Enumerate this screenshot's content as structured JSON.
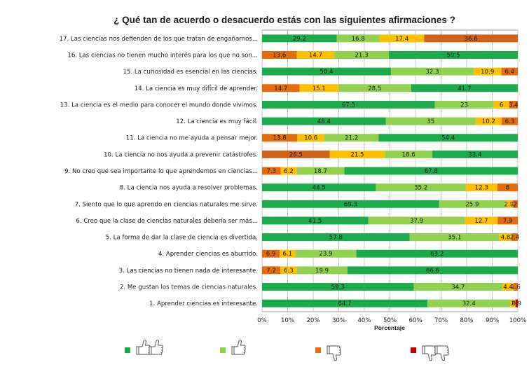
{
  "chart_data": {
    "type": "bar",
    "orientation": "horizontal",
    "stacked": "percent",
    "title": "¿ Qué tan de acuerdo o desacuerdo estás con las siguientes afirmaciones ?",
    "xlabel": "Porcentaje",
    "ylabel": "",
    "xlim": [
      0,
      100
    ],
    "x_ticks": [
      "0%",
      "10%",
      "20%",
      "30%",
      "40%",
      "50%",
      "60%",
      "70%",
      "80%",
      "90%",
      "100%"
    ],
    "grid": true,
    "legend_position": "bottom",
    "categories": [
      "17. Las ciencias nos defienden de los que tratan de engañarnos...",
      "16. Las ciencias no tienen mucho interés para los que no son...",
      "15. La curiosidad es esencial en las ciencias.",
      "14. La ciencia es muy difícil de aprender.",
      "13. La ciencia es el medio para conocer el mundo donde vivimos.",
      "12. La ciencia es muy fácil.",
      "11. La ciencia no me ayuda a pensar mejor.",
      "10. La ciencia no nos ayuda a prevenir catástrofes.",
      "9. No creo que sea importante lo que aprendemos en ciencias...",
      "8. La ciencia nos ayuda a resolver problemas.",
      "7. Siento que lo que aprendo en ciencias naturales me sirve.",
      "6. Creo que la clase de ciencias naturales debería ser más...",
      "5. La forma de dar la clase de ciencia es divertida.",
      "4. Aprender ciencias es aburrido.",
      "3. Las ciencias no tienen nada de interesante.",
      "2. Me gustan los temas de ciencias naturales.",
      "1. Aprender ciencias es interesante."
    ],
    "segment_palette": {
      "dark_green": "#1cab4b",
      "light_green": "#92d050",
      "yellow": "#ffc000",
      "orange": "#e46c0a",
      "dark_orange": "#d0621b",
      "red": "#c00000"
    },
    "rows": [
      {
        "segments": [
          {
            "value": 29.2,
            "color": "dark_green"
          },
          {
            "value": 16.8,
            "color": "light_green"
          },
          {
            "value": 17.4,
            "color": "yellow"
          },
          {
            "value": 36.6,
            "color": "dark_orange"
          }
        ]
      },
      {
        "segments": [
          {
            "value": 13.6,
            "color": "orange"
          },
          {
            "value": 14.7,
            "color": "yellow"
          },
          {
            "value": 21.3,
            "color": "light_green"
          },
          {
            "value": 50.5,
            "color": "dark_green"
          }
        ]
      },
      {
        "segments": [
          {
            "value": 50.4,
            "color": "dark_green"
          },
          {
            "value": 32.3,
            "color": "light_green"
          },
          {
            "value": 10.9,
            "color": "yellow"
          },
          {
            "value": 6.4,
            "color": "orange"
          }
        ]
      },
      {
        "segments": [
          {
            "value": 14.7,
            "color": "orange"
          },
          {
            "value": 15.1,
            "color": "yellow"
          },
          {
            "value": 28.5,
            "color": "light_green"
          },
          {
            "value": 41.7,
            "color": "dark_green"
          }
        ]
      },
      {
        "segments": [
          {
            "value": 67.5,
            "color": "dark_green"
          },
          {
            "value": 23,
            "color": "light_green"
          },
          {
            "value": 6,
            "color": "yellow"
          },
          {
            "value": 3.4,
            "color": "orange"
          }
        ]
      },
      {
        "segments": [
          {
            "value": 48.4,
            "color": "dark_green"
          },
          {
            "value": 35,
            "color": "light_green"
          },
          {
            "value": 10.2,
            "color": "yellow"
          },
          {
            "value": 6.3,
            "color": "orange"
          }
        ]
      },
      {
        "segments": [
          {
            "value": 13.8,
            "color": "orange"
          },
          {
            "value": 10.6,
            "color": "yellow"
          },
          {
            "value": 21.2,
            "color": "light_green"
          },
          {
            "value": 54.4,
            "color": "dark_green"
          }
        ]
      },
      {
        "segments": [
          {
            "value": 26.5,
            "color": "dark_orange"
          },
          {
            "value": 21.5,
            "color": "yellow"
          },
          {
            "value": 18.6,
            "color": "light_green"
          },
          {
            "value": 33.4,
            "color": "dark_green"
          }
        ]
      },
      {
        "segments": [
          {
            "value": 7.3,
            "color": "orange"
          },
          {
            "value": 6.2,
            "color": "yellow"
          },
          {
            "value": 18.7,
            "color": "light_green"
          },
          {
            "value": 67.8,
            "color": "dark_green"
          }
        ]
      },
      {
        "segments": [
          {
            "value": 44.5,
            "color": "dark_green"
          },
          {
            "value": 35.2,
            "color": "light_green"
          },
          {
            "value": 12.3,
            "color": "yellow"
          },
          {
            "value": 8,
            "color": "orange"
          }
        ]
      },
      {
        "segments": [
          {
            "value": 69.3,
            "color": "dark_green"
          },
          {
            "value": 25.9,
            "color": "light_green"
          },
          {
            "value": 2.9,
            "color": "yellow"
          },
          {
            "value": 2,
            "color": "orange"
          }
        ]
      },
      {
        "segments": [
          {
            "value": 41.5,
            "color": "dark_green"
          },
          {
            "value": 37.9,
            "color": "light_green"
          },
          {
            "value": 12.7,
            "color": "yellow"
          },
          {
            "value": 7.9,
            "color": "orange"
          }
        ]
      },
      {
        "segments": [
          {
            "value": 57.8,
            "color": "dark_green"
          },
          {
            "value": 35.1,
            "color": "light_green"
          },
          {
            "value": 4.8,
            "color": "yellow"
          },
          {
            "value": 2.4,
            "color": "orange"
          }
        ]
      },
      {
        "segments": [
          {
            "value": 6.9,
            "color": "orange"
          },
          {
            "value": 6.1,
            "color": "yellow"
          },
          {
            "value": 23.9,
            "color": "light_green"
          },
          {
            "value": 63.2,
            "color": "dark_green"
          }
        ]
      },
      {
        "segments": [
          {
            "value": 7.2,
            "color": "orange"
          },
          {
            "value": 6.3,
            "color": "yellow"
          },
          {
            "value": 19.9,
            "color": "light_green"
          },
          {
            "value": 66.6,
            "color": "dark_green"
          }
        ]
      },
      {
        "segments": [
          {
            "value": 59.3,
            "color": "dark_green"
          },
          {
            "value": 34.7,
            "color": "light_green"
          },
          {
            "value": 4.4,
            "color": "yellow"
          },
          {
            "value": 1.6,
            "color": "orange"
          }
        ]
      },
      {
        "segments": [
          {
            "value": 64.7,
            "color": "dark_green"
          },
          {
            "value": 32.4,
            "color": "light_green"
          },
          {
            "value": 2,
            "color": "yellow"
          },
          {
            "value": 0.9,
            "color": "red"
          }
        ]
      }
    ],
    "legend": [
      {
        "color": "dark_green",
        "icon": "two-thumbs-up-icon"
      },
      {
        "color": "light_green",
        "icon": "thumb-up-icon"
      },
      {
        "color": "orange",
        "icon": "thumb-down-icon"
      },
      {
        "color": "red",
        "icon": "two-thumbs-down-icon"
      }
    ]
  }
}
